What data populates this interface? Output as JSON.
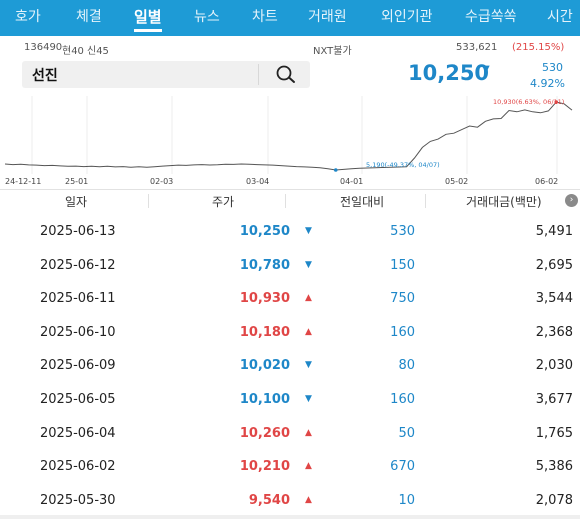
{
  "tabs": [
    {
      "label": "호가",
      "active": false
    },
    {
      "label": "체결",
      "active": false
    },
    {
      "label": "일별",
      "active": true
    },
    {
      "label": "뉴스",
      "active": false
    },
    {
      "label": "차트",
      "active": false
    },
    {
      "label": "거래원",
      "active": false
    },
    {
      "label": "외인기관",
      "active": false
    },
    {
      "label": "수급쏙쏙",
      "active": false
    },
    {
      "label": "시간",
      "active": false
    }
  ],
  "stock": {
    "code": "136490",
    "badge1": "현40",
    "badge2": "신45",
    "nxt": "NXT불가",
    "volume": "533,621",
    "volume_pct": "(215.15%)",
    "name": "선진",
    "price": "10,250",
    "change": "530",
    "change_pct": "4.92%"
  },
  "icons": {
    "search": "magnifier-icon",
    "price_direction": "down-triangle-icon",
    "more": "chevron-right-icon"
  },
  "colors": {
    "accent": "#1e9bd6",
    "up": "#e04646",
    "down": "#1e87c8"
  },
  "chart_data": {
    "type": "line",
    "x_ticks": [
      "24-12-11",
      "25-01",
      "02-03",
      "03-04",
      "04-01",
      "05-02",
      "06-02"
    ],
    "annotations": {
      "high": "10,930(6.63%, 06/11)",
      "low": "5,190(-49.37%, 04/07)"
    },
    "series": [
      {
        "values": [
          5700,
          5650,
          5680,
          5620,
          5600,
          5560,
          5580,
          5540,
          5500,
          5520,
          5480,
          5510,
          5470,
          5500,
          5450,
          5480,
          5420,
          5460,
          5430,
          5470,
          5520,
          5560,
          5600,
          5580,
          5620,
          5650,
          5610,
          5640,
          5680,
          5660,
          5700,
          5680,
          5650,
          5620,
          5600,
          5560,
          5520,
          5480,
          5450,
          5420,
          5380,
          5300,
          5190,
          5240,
          5300,
          5330,
          5360,
          5380,
          5400,
          5420,
          5440,
          5470,
          6200,
          7100,
          7600,
          7800,
          8200,
          8300,
          8600,
          8900,
          8800,
          9300,
          9500,
          9540,
          10210,
          10100,
          10260,
          10100,
          10020,
          10180,
          10930,
          10780,
          10250
        ]
      }
    ]
  },
  "table": {
    "headers": [
      "일자",
      "주가",
      "전일대비",
      "거래대금(백만)"
    ],
    "rows": [
      {
        "date": "2025-06-13",
        "price": "10,250",
        "dir": "down",
        "chg": "530",
        "amount": "5,491"
      },
      {
        "date": "2025-06-12",
        "price": "10,780",
        "dir": "down",
        "chg": "150",
        "amount": "2,695"
      },
      {
        "date": "2025-06-11",
        "price": "10,930",
        "dir": "up",
        "chg": "750",
        "amount": "3,544"
      },
      {
        "date": "2025-06-10",
        "price": "10,180",
        "dir": "up",
        "chg": "160",
        "amount": "2,368"
      },
      {
        "date": "2025-06-09",
        "price": "10,020",
        "dir": "down",
        "chg": "80",
        "amount": "2,030"
      },
      {
        "date": "2025-06-05",
        "price": "10,100",
        "dir": "down",
        "chg": "160",
        "amount": "3,677"
      },
      {
        "date": "2025-06-04",
        "price": "10,260",
        "dir": "up",
        "chg": "50",
        "amount": "1,765"
      },
      {
        "date": "2025-06-02",
        "price": "10,210",
        "dir": "up",
        "chg": "670",
        "amount": "5,386"
      },
      {
        "date": "2025-05-30",
        "price": "9,540",
        "dir": "up",
        "chg": "10",
        "amount": "2,078"
      }
    ]
  }
}
